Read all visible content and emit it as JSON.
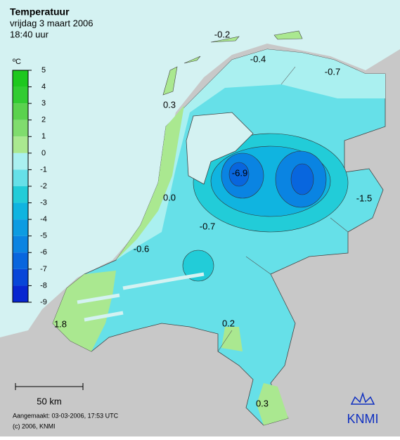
{
  "header": {
    "title": "Temperatuur",
    "date": "vrijdag 3 maart 2006",
    "time": "18:40 uur"
  },
  "legend": {
    "unit": "ºC",
    "ticks": [
      5,
      4,
      3,
      2,
      1,
      0,
      -1,
      -2,
      -3,
      -4,
      -5,
      -6,
      -7,
      -8,
      -9
    ],
    "colors": [
      "#1ec81e",
      "#32cc32",
      "#5ad24e",
      "#80dc6e",
      "#aae890",
      "#aaf0f0",
      "#66e0e8",
      "#22ccd8",
      "#10b4e0",
      "#0c9ce2",
      "#0a84e2",
      "#0866de",
      "#0846d8",
      "#0826d0"
    ]
  },
  "map_labels": [
    "-0.2",
    "-0.4",
    "-0.7",
    "0.3",
    "-6.9",
    "-1.5",
    "0.0",
    "-0.7",
    "-0.6",
    "1.8",
    "0.2",
    "0.3"
  ],
  "scale": "50 km",
  "footer": {
    "created": "Aangemaakt: 03-03-2006, 17:53 UTC",
    "copyright": "(c) 2006, KNMI"
  },
  "logo": "KNMI"
}
